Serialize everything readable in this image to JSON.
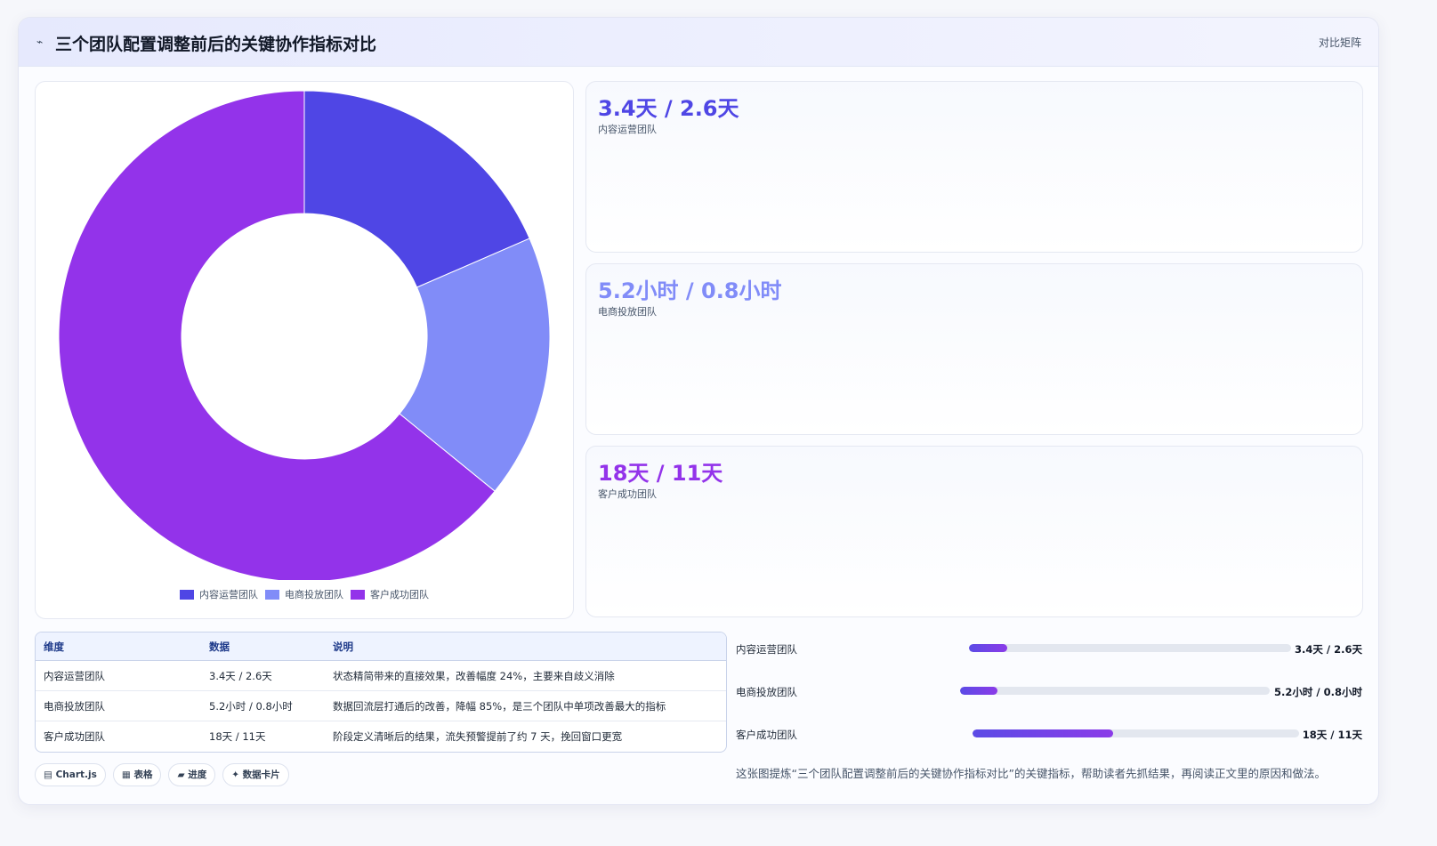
{
  "header": {
    "icon": "chart-line-icon",
    "title": "三个团队配置调整前后的关键协作指标对比",
    "mode_label": "对比矩阵"
  },
  "chart_data": {
    "type": "pie",
    "donut": true,
    "categories": [
      "内容运营团队",
      "电商投放团队",
      "客户成功团队"
    ],
    "values": [
      3.4,
      3.2,
      11.8
    ],
    "colors": [
      "#4f46e5",
      "#818cf8",
      "#9333ea"
    ],
    "legend_position": "bottom"
  },
  "stats": [
    {
      "value": "3.4天 / 2.6天",
      "label": "内容运营团队",
      "color": "#4f46e5"
    },
    {
      "value": "5.2小时 / 0.8小时",
      "label": "电商投放团队",
      "color": "#818cf8"
    },
    {
      "value": "18天 / 11天",
      "label": "客户成功团队",
      "color": "#9333ea"
    }
  ],
  "table": {
    "headers": [
      "维度",
      "数据",
      "说明"
    ],
    "rows": [
      [
        "内容运营团队",
        "3.4天 / 2.6天",
        "状态精简带来的直接效果，改善幅度 24%，主要来自歧义消除"
      ],
      [
        "电商投放团队",
        "5.2小时 / 0.8小时",
        "数据回流层打通后的改善，降幅 85%，是三个团队中单项改善最大的指标"
      ],
      [
        "客户成功团队",
        "18天 / 11天",
        "阶段定义清晰后的结果，流失预警提前了约 7 天，挽回窗口更宽"
      ]
    ]
  },
  "chips": [
    "▤ Chart.js",
    "▦ 表格",
    "▰ 进度",
    "✦ 数据卡片"
  ],
  "progress": [
    {
      "name": "内容运营团队",
      "value_text": "3.4天 / 2.6天",
      "fraction": 0.12
    },
    {
      "name": "电商投放团队",
      "value_text": "5.2小时 / 0.8小时",
      "fraction": 0.12
    },
    {
      "name": "客户成功团队",
      "value_text": "18天 / 11天",
      "fraction": 0.43
    }
  ],
  "note": "这张图提炼“三个团队配置调整前后的关键协作指标对比”的关键指标，帮助读者先抓结果，再阅读正文里的原因和做法。"
}
